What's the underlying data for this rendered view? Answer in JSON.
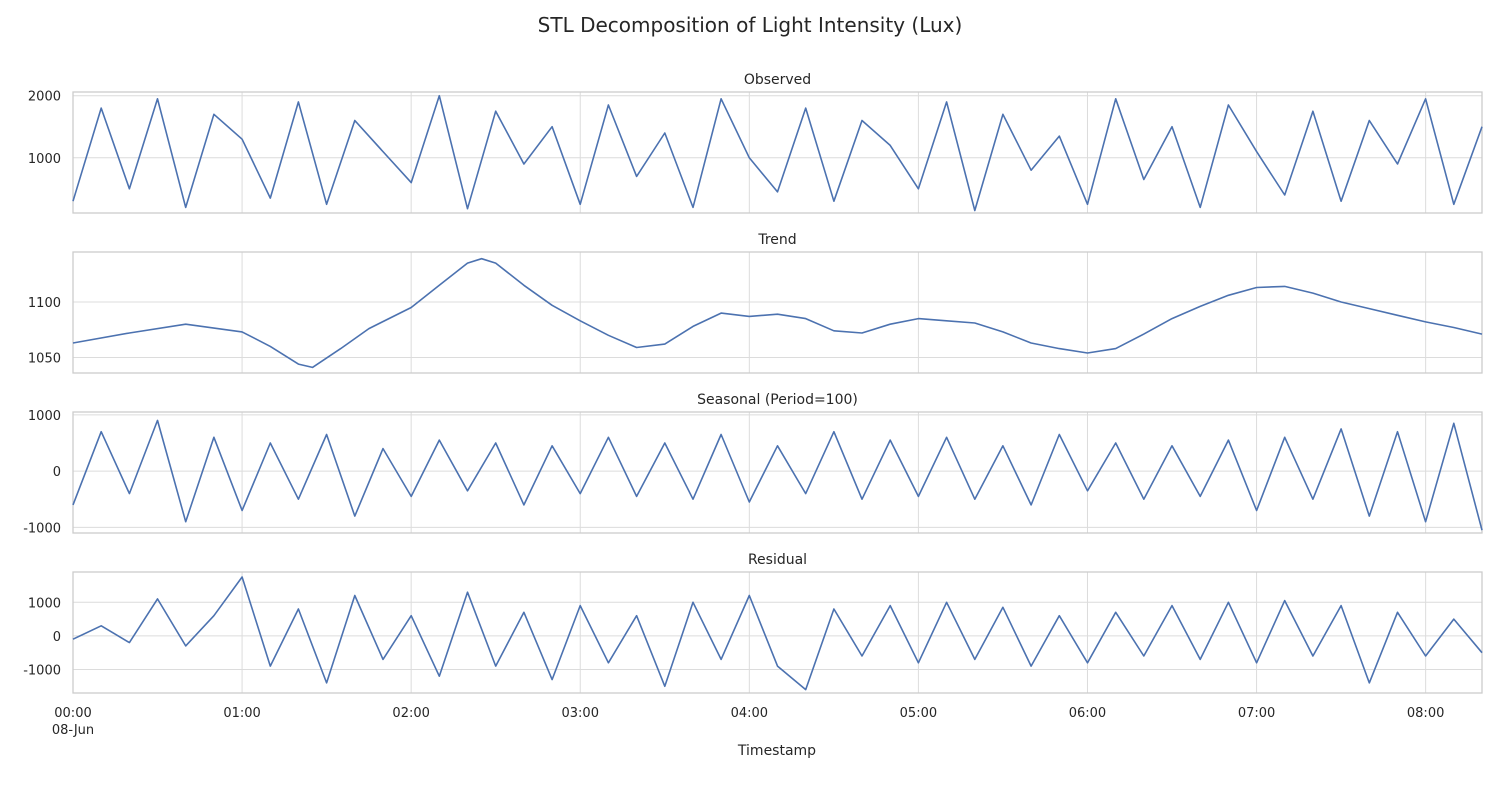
{
  "chart_data": {
    "type": "line",
    "title": "STL Decomposition of Light Intensity (Lux)",
    "xlabel": "Timestamp",
    "line_color": "#4c72b0",
    "grid": true,
    "x_range": [
      "2024-06-08 00:00",
      "2024-06-08 08:20"
    ],
    "x_ticks": [
      {
        "value": "00:00",
        "label": "00:00",
        "sublabel": "08-Jun"
      },
      {
        "value": "01:00",
        "label": "01:00"
      },
      {
        "value": "02:00",
        "label": "02:00"
      },
      {
        "value": "03:00",
        "label": "03:00"
      },
      {
        "value": "04:00",
        "label": "04:00"
      },
      {
        "value": "05:00",
        "label": "05:00"
      },
      {
        "value": "06:00",
        "label": "06:00"
      },
      {
        "value": "07:00",
        "label": "07:00"
      },
      {
        "value": "08:00",
        "label": "08:00"
      }
    ],
    "panels": [
      {
        "subtitle": "Observed",
        "ylim": [
          110,
          2060
        ],
        "yticks": [
          1000,
          2000
        ],
        "series": {
          "x": [
            "00:00",
            "00:10",
            "00:20",
            "00:30",
            "00:40",
            "00:50",
            "01:00",
            "01:10",
            "01:20",
            "01:30",
            "01:40",
            "01:50",
            "02:00",
            "02:10",
            "02:20",
            "02:30",
            "02:40",
            "02:50",
            "03:00",
            "03:10",
            "03:20",
            "03:30",
            "03:40",
            "03:50",
            "04:00",
            "04:10",
            "04:20",
            "04:30",
            "04:40",
            "04:50",
            "05:00",
            "05:10",
            "05:20",
            "05:30",
            "05:40",
            "05:50",
            "06:00",
            "06:10",
            "06:20",
            "06:30",
            "06:40",
            "06:50",
            "07:00",
            "07:10",
            "07:20",
            "07:30",
            "07:40",
            "07:50",
            "08:00",
            "08:10",
            "08:20"
          ],
          "y": [
            300,
            1800,
            500,
            1950,
            200,
            1700,
            1300,
            350,
            1900,
            250,
            1600,
            1100,
            600,
            2000,
            180,
            1750,
            900,
            1500,
            250,
            1850,
            700,
            1400,
            200,
            1950,
            1000,
            450,
            1800,
            300,
            1600,
            1200,
            500,
            1900,
            150,
            1700,
            800,
            1350,
            250,
            1950,
            650,
            1500,
            200,
            1850,
            1100,
            400,
            1750,
            300,
            1600,
            900,
            1950,
            250,
            1500
          ]
        }
      },
      {
        "subtitle": "Trend",
        "ylim": [
          1036,
          1145
        ],
        "yticks": [
          1050,
          1100
        ],
        "series": {
          "x": [
            "00:00",
            "00:20",
            "00:40",
            "01:00",
            "01:10",
            "01:20",
            "01:25",
            "01:35",
            "01:45",
            "02:00",
            "02:10",
            "02:20",
            "02:25",
            "02:30",
            "02:40",
            "02:50",
            "03:00",
            "03:10",
            "03:20",
            "03:30",
            "03:40",
            "03:50",
            "04:00",
            "04:10",
            "04:20",
            "04:30",
            "04:40",
            "04:50",
            "05:00",
            "05:10",
            "05:20",
            "05:30",
            "05:40",
            "05:50",
            "06:00",
            "06:10",
            "06:20",
            "06:30",
            "06:40",
            "06:50",
            "07:00",
            "07:10",
            "07:20",
            "07:30",
            "07:40",
            "07:50",
            "08:00",
            "08:10",
            "08:20"
          ],
          "y": [
            1063,
            1072,
            1080,
            1073,
            1060,
            1044,
            1041,
            1058,
            1076,
            1095,
            1115,
            1135,
            1139,
            1135,
            1115,
            1097,
            1083,
            1070,
            1059,
            1062,
            1078,
            1090,
            1087,
            1089,
            1085,
            1074,
            1072,
            1080,
            1085,
            1083,
            1081,
            1073,
            1063,
            1058,
            1054,
            1058,
            1071,
            1085,
            1096,
            1106,
            1113,
            1114,
            1108,
            1100,
            1094,
            1088,
            1082,
            1077,
            1071
          ]
        }
      },
      {
        "subtitle": "Seasonal (Period=100)",
        "ylim": [
          -1100,
          1050
        ],
        "yticks": [
          -1000,
          0,
          1000
        ],
        "series": {
          "x": [
            "00:00",
            "00:10",
            "00:20",
            "00:30",
            "00:40",
            "00:50",
            "01:00",
            "01:10",
            "01:20",
            "01:30",
            "01:40",
            "01:50",
            "02:00",
            "02:10",
            "02:20",
            "02:30",
            "02:40",
            "02:50",
            "03:00",
            "03:10",
            "03:20",
            "03:30",
            "03:40",
            "03:50",
            "04:00",
            "04:10",
            "04:20",
            "04:30",
            "04:40",
            "04:50",
            "05:00",
            "05:10",
            "05:20",
            "05:30",
            "05:40",
            "05:50",
            "06:00",
            "06:10",
            "06:20",
            "06:30",
            "06:40",
            "06:50",
            "07:00",
            "07:10",
            "07:20",
            "07:30",
            "07:40",
            "07:50",
            "08:00",
            "08:10",
            "08:20"
          ],
          "y": [
            -600,
            700,
            -400,
            900,
            -900,
            600,
            -700,
            500,
            -500,
            650,
            -800,
            400,
            -450,
            550,
            -350,
            500,
            -600,
            450,
            -400,
            600,
            -450,
            500,
            -500,
            650,
            -550,
            450,
            -400,
            700,
            -500,
            550,
            -450,
            600,
            -500,
            450,
            -600,
            650,
            -350,
            500,
            -500,
            450,
            -450,
            550,
            -700,
            600,
            -500,
            750,
            -800,
            700,
            -900,
            850,
            -1050
          ]
        }
      },
      {
        "subtitle": "Residual",
        "ylim": [
          -1700,
          1900
        ],
        "yticks": [
          -1000,
          0,
          1000
        ],
        "series": {
          "x": [
            "00:00",
            "00:10",
            "00:20",
            "00:30",
            "00:40",
            "00:50",
            "01:00",
            "01:10",
            "01:20",
            "01:30",
            "01:40",
            "01:50",
            "02:00",
            "02:10",
            "02:20",
            "02:30",
            "02:40",
            "02:50",
            "03:00",
            "03:10",
            "03:20",
            "03:30",
            "03:40",
            "03:50",
            "04:00",
            "04:10",
            "04:20",
            "04:30",
            "04:40",
            "04:50",
            "05:00",
            "05:10",
            "05:20",
            "05:30",
            "05:40",
            "05:50",
            "06:00",
            "06:10",
            "06:20",
            "06:30",
            "06:40",
            "06:50",
            "07:00",
            "07:10",
            "07:20",
            "07:30",
            "07:40",
            "07:50",
            "08:00",
            "08:10",
            "08:20"
          ],
          "y": [
            -100,
            300,
            -200,
            1100,
            -300,
            600,
            1750,
            -900,
            800,
            -1400,
            1200,
            -700,
            600,
            -1200,
            1300,
            -900,
            700,
            -1300,
            900,
            -800,
            600,
            -1500,
            1000,
            -700,
            1200,
            -900,
            -1600,
            800,
            -600,
            900,
            -800,
            1000,
            -700,
            850,
            -900,
            600,
            -800,
            700,
            -600,
            900,
            -700,
            1000,
            -800,
            1050,
            -600,
            900,
            -1400,
            700,
            -600,
            500,
            -500
          ]
        }
      }
    ]
  }
}
